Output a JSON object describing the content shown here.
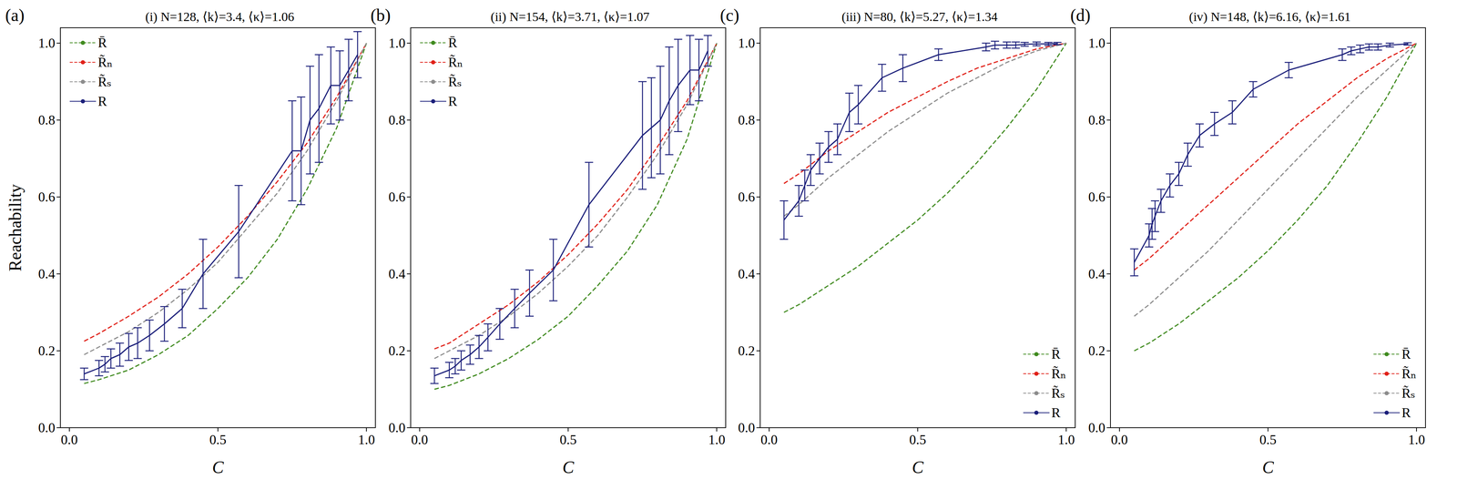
{
  "chart_data": [
    {
      "type": "line",
      "panel": "(a)",
      "title": "(i) N=128, ⟨k⟩=3.4, ⟨κ⟩=1.06",
      "x_label": "C",
      "y_label": "Reachability",
      "grid": false,
      "legend": "upper left",
      "xlim": [
        -0.03,
        1.03
      ],
      "ylim": [
        0,
        1.04
      ],
      "xticks": [
        {
          "value": 0,
          "label": "0.0"
        },
        {
          "value": 0.5,
          "label": "0.5"
        },
        {
          "value": 1,
          "label": "1.0"
        }
      ],
      "yticks": [
        {
          "value": 0,
          "label": "0.0"
        },
        {
          "value": 0.2,
          "label": "0.2"
        },
        {
          "value": 0.4,
          "label": "0.4"
        },
        {
          "value": 0.6,
          "label": "0.6"
        },
        {
          "value": 0.8,
          "label": "0.8"
        },
        {
          "value": 1,
          "label": "1.0"
        }
      ],
      "series": [
        {
          "name": "R̄",
          "color": "#3f8a1e",
          "line_style": "dashed",
          "x": [
            0.05,
            0.1,
            0.2,
            0.3,
            0.4,
            0.5,
            0.6,
            0.7,
            0.8,
            0.9,
            1.0
          ],
          "values": [
            0.115,
            0.125,
            0.15,
            0.19,
            0.24,
            0.31,
            0.39,
            0.49,
            0.62,
            0.78,
            1.0
          ]
        },
        {
          "name": "R̃ₙ",
          "color": "#e02018",
          "line_style": "dashed",
          "x": [
            0.05,
            0.1,
            0.2,
            0.3,
            0.4,
            0.5,
            0.6,
            0.7,
            0.8,
            0.9,
            1.0
          ],
          "values": [
            0.225,
            0.245,
            0.29,
            0.34,
            0.4,
            0.47,
            0.55,
            0.64,
            0.74,
            0.86,
            1.0
          ]
        },
        {
          "name": "R̃ₛ",
          "color": "#8c8c8c",
          "line_style": "dashed",
          "x": [
            0.05,
            0.1,
            0.2,
            0.3,
            0.4,
            0.5,
            0.6,
            0.7,
            0.8,
            0.9,
            1.0
          ],
          "values": [
            0.19,
            0.21,
            0.25,
            0.3,
            0.36,
            0.43,
            0.52,
            0.61,
            0.72,
            0.85,
            1.0
          ]
        },
        {
          "name": "R",
          "color": "#1b1f7a",
          "line_style": "solid",
          "x": [
            0.05,
            0.1,
            0.12,
            0.14,
            0.17,
            0.2,
            0.23,
            0.27,
            0.32,
            0.38,
            0.45,
            0.57,
            0.75,
            0.78,
            0.81,
            0.84,
            0.88,
            0.91,
            0.94,
            0.97
          ],
          "values": [
            0.14,
            0.155,
            0.165,
            0.18,
            0.19,
            0.21,
            0.22,
            0.24,
            0.27,
            0.31,
            0.4,
            0.51,
            0.72,
            0.72,
            0.8,
            0.83,
            0.89,
            0.89,
            0.93,
            0.97
          ],
          "errors": [
            0.015,
            0.02,
            0.02,
            0.025,
            0.03,
            0.035,
            0.04,
            0.04,
            0.045,
            0.05,
            0.09,
            0.12,
            0.13,
            0.14,
            0.14,
            0.14,
            0.1,
            0.09,
            0.08,
            0.06
          ]
        }
      ]
    },
    {
      "type": "line",
      "panel": "(b)",
      "title": "(ii) N=154, ⟨k⟩=3.71, ⟨κ⟩=1.07",
      "x_label": "C",
      "grid": false,
      "legend": "upper left",
      "xlim": [
        -0.03,
        1.03
      ],
      "ylim": [
        0,
        1.04
      ],
      "xticks": [
        {
          "value": 0,
          "label": "0.0"
        },
        {
          "value": 0.5,
          "label": "0.5"
        },
        {
          "value": 1,
          "label": "1.0"
        }
      ],
      "yticks": [
        {
          "value": 0,
          "label": "0.0"
        },
        {
          "value": 0.2,
          "label": "0.2"
        },
        {
          "value": 0.4,
          "label": "0.4"
        },
        {
          "value": 0.6,
          "label": "0.6"
        },
        {
          "value": 0.8,
          "label": "0.8"
        },
        {
          "value": 1,
          "label": "1.0"
        }
      ],
      "series": [
        {
          "name": "R̄",
          "color": "#3f8a1e",
          "line_style": "dashed",
          "x": [
            0.05,
            0.1,
            0.2,
            0.3,
            0.4,
            0.5,
            0.6,
            0.7,
            0.8,
            0.9,
            1.0
          ],
          "values": [
            0.1,
            0.11,
            0.14,
            0.18,
            0.23,
            0.29,
            0.37,
            0.46,
            0.58,
            0.75,
            1.0
          ]
        },
        {
          "name": "R̃ₙ",
          "color": "#e02018",
          "line_style": "dashed",
          "x": [
            0.05,
            0.1,
            0.2,
            0.3,
            0.4,
            0.5,
            0.6,
            0.7,
            0.8,
            0.9,
            1.0
          ],
          "values": [
            0.205,
            0.22,
            0.27,
            0.32,
            0.38,
            0.45,
            0.53,
            0.62,
            0.73,
            0.85,
            1.0
          ]
        },
        {
          "name": "R̃ₛ",
          "color": "#8c8c8c",
          "line_style": "dashed",
          "x": [
            0.05,
            0.1,
            0.2,
            0.3,
            0.4,
            0.5,
            0.6,
            0.7,
            0.8,
            0.9,
            1.0
          ],
          "values": [
            0.18,
            0.2,
            0.24,
            0.29,
            0.35,
            0.42,
            0.5,
            0.6,
            0.71,
            0.84,
            1.0
          ]
        },
        {
          "name": "R",
          "color": "#1b1f7a",
          "line_style": "solid",
          "x": [
            0.05,
            0.1,
            0.12,
            0.14,
            0.17,
            0.2,
            0.23,
            0.27,
            0.32,
            0.37,
            0.45,
            0.57,
            0.75,
            0.78,
            0.81,
            0.84,
            0.87,
            0.91,
            0.94,
            0.97
          ],
          "values": [
            0.135,
            0.15,
            0.16,
            0.175,
            0.19,
            0.21,
            0.235,
            0.27,
            0.31,
            0.35,
            0.41,
            0.58,
            0.76,
            0.78,
            0.8,
            0.85,
            0.89,
            0.93,
            0.93,
            0.98
          ],
          "errors": [
            0.02,
            0.02,
            0.02,
            0.025,
            0.025,
            0.03,
            0.035,
            0.04,
            0.05,
            0.06,
            0.08,
            0.11,
            0.14,
            0.13,
            0.14,
            0.14,
            0.12,
            0.09,
            0.08,
            0.04
          ]
        }
      ]
    },
    {
      "type": "line",
      "panel": "(c)",
      "title": "(iii) N=80, ⟨k⟩=5.27, ⟨κ⟩=1.34",
      "x_label": "C",
      "grid": false,
      "legend": "lower right",
      "xlim": [
        -0.03,
        1.03
      ],
      "ylim": [
        0,
        1.04
      ],
      "xticks": [
        {
          "value": 0,
          "label": "0.0"
        },
        {
          "value": 0.5,
          "label": "0.5"
        },
        {
          "value": 1,
          "label": "1.0"
        }
      ],
      "yticks": [
        {
          "value": 0,
          "label": "0.0"
        },
        {
          "value": 0.2,
          "label": "0.2"
        },
        {
          "value": 0.4,
          "label": "0.4"
        },
        {
          "value": 0.6,
          "label": "0.6"
        },
        {
          "value": 0.8,
          "label": "0.8"
        },
        {
          "value": 1,
          "label": "1.0"
        }
      ],
      "series": [
        {
          "name": "R̄",
          "color": "#3f8a1e",
          "line_style": "dashed",
          "x": [
            0.05,
            0.1,
            0.2,
            0.3,
            0.4,
            0.5,
            0.6,
            0.7,
            0.8,
            0.9,
            1.0
          ],
          "values": [
            0.3,
            0.32,
            0.37,
            0.42,
            0.48,
            0.54,
            0.61,
            0.69,
            0.78,
            0.88,
            1.0
          ]
        },
        {
          "name": "R̃ₙ",
          "color": "#e02018",
          "line_style": "dashed",
          "x": [
            0.05,
            0.1,
            0.2,
            0.3,
            0.4,
            0.5,
            0.6,
            0.7,
            0.8,
            0.9,
            1.0
          ],
          "values": [
            0.635,
            0.66,
            0.72,
            0.77,
            0.82,
            0.86,
            0.9,
            0.935,
            0.96,
            0.985,
            1.0
          ]
        },
        {
          "name": "R̃ₛ",
          "color": "#8c8c8c",
          "line_style": "dashed",
          "x": [
            0.05,
            0.1,
            0.2,
            0.3,
            0.4,
            0.5,
            0.6,
            0.7,
            0.8,
            0.9,
            1.0
          ],
          "values": [
            0.55,
            0.58,
            0.65,
            0.71,
            0.77,
            0.82,
            0.87,
            0.91,
            0.95,
            0.98,
            1.0
          ]
        },
        {
          "name": "R",
          "color": "#1b1f7a",
          "line_style": "solid",
          "x": [
            0.05,
            0.1,
            0.12,
            0.14,
            0.17,
            0.2,
            0.23,
            0.27,
            0.3,
            0.38,
            0.45,
            0.57,
            0.73,
            0.76,
            0.8,
            0.83,
            0.86,
            0.9,
            0.94,
            0.97
          ],
          "values": [
            0.54,
            0.59,
            0.63,
            0.67,
            0.7,
            0.73,
            0.75,
            0.82,
            0.84,
            0.91,
            0.935,
            0.97,
            0.99,
            0.995,
            0.995,
            0.995,
            0.997,
            0.998,
            0.998,
            0.999
          ],
          "errors": [
            0.05,
            0.04,
            0.04,
            0.04,
            0.04,
            0.04,
            0.04,
            0.05,
            0.05,
            0.035,
            0.035,
            0.015,
            0.01,
            0.01,
            0.008,
            0.008,
            0.005,
            0.005,
            0.004,
            0.003
          ]
        }
      ]
    },
    {
      "type": "line",
      "panel": "(d)",
      "title": "(iv) N=148, ⟨k⟩=6.16, ⟨κ⟩=1.61",
      "x_label": "C",
      "grid": false,
      "legend": "lower right",
      "xlim": [
        -0.03,
        1.03
      ],
      "ylim": [
        0,
        1.04
      ],
      "xticks": [
        {
          "value": 0,
          "label": "0.0"
        },
        {
          "value": 0.5,
          "label": "0.5"
        },
        {
          "value": 1,
          "label": "1.0"
        }
      ],
      "yticks": [
        {
          "value": 0,
          "label": "0.0"
        },
        {
          "value": 0.2,
          "label": "0.2"
        },
        {
          "value": 0.4,
          "label": "0.4"
        },
        {
          "value": 0.6,
          "label": "0.6"
        },
        {
          "value": 0.8,
          "label": "0.8"
        },
        {
          "value": 1,
          "label": "1.0"
        }
      ],
      "series": [
        {
          "name": "R̄",
          "color": "#3f8a1e",
          "line_style": "dashed",
          "x": [
            0.05,
            0.1,
            0.2,
            0.3,
            0.4,
            0.5,
            0.6,
            0.7,
            0.8,
            0.9,
            1.0
          ],
          "values": [
            0.2,
            0.22,
            0.27,
            0.33,
            0.39,
            0.46,
            0.54,
            0.63,
            0.74,
            0.86,
            1.0
          ]
        },
        {
          "name": "R̃ₙ",
          "color": "#e02018",
          "line_style": "dashed",
          "x": [
            0.05,
            0.1,
            0.2,
            0.3,
            0.4,
            0.5,
            0.6,
            0.7,
            0.8,
            0.9,
            1.0
          ],
          "values": [
            0.41,
            0.44,
            0.51,
            0.58,
            0.65,
            0.72,
            0.79,
            0.85,
            0.91,
            0.96,
            1.0
          ]
        },
        {
          "name": "R̃ₛ",
          "color": "#8c8c8c",
          "line_style": "dashed",
          "x": [
            0.05,
            0.1,
            0.2,
            0.3,
            0.4,
            0.5,
            0.6,
            0.7,
            0.8,
            0.9,
            1.0
          ],
          "values": [
            0.29,
            0.32,
            0.39,
            0.46,
            0.54,
            0.62,
            0.7,
            0.78,
            0.86,
            0.93,
            1.0
          ]
        },
        {
          "name": "R",
          "color": "#1b1f7a",
          "line_style": "solid",
          "x": [
            0.05,
            0.1,
            0.11,
            0.12,
            0.14,
            0.17,
            0.2,
            0.23,
            0.27,
            0.32,
            0.38,
            0.45,
            0.57,
            0.75,
            0.78,
            0.81,
            0.84,
            0.87,
            0.91,
            0.97
          ],
          "values": [
            0.43,
            0.5,
            0.53,
            0.55,
            0.59,
            0.63,
            0.66,
            0.71,
            0.76,
            0.79,
            0.82,
            0.88,
            0.93,
            0.97,
            0.98,
            0.985,
            0.99,
            0.99,
            0.995,
            0.998
          ],
          "errors": [
            0.035,
            0.03,
            0.04,
            0.04,
            0.03,
            0.03,
            0.03,
            0.03,
            0.03,
            0.03,
            0.03,
            0.02,
            0.02,
            0.015,
            0.01,
            0.01,
            0.008,
            0.008,
            0.005,
            0.003
          ]
        }
      ]
    }
  ]
}
